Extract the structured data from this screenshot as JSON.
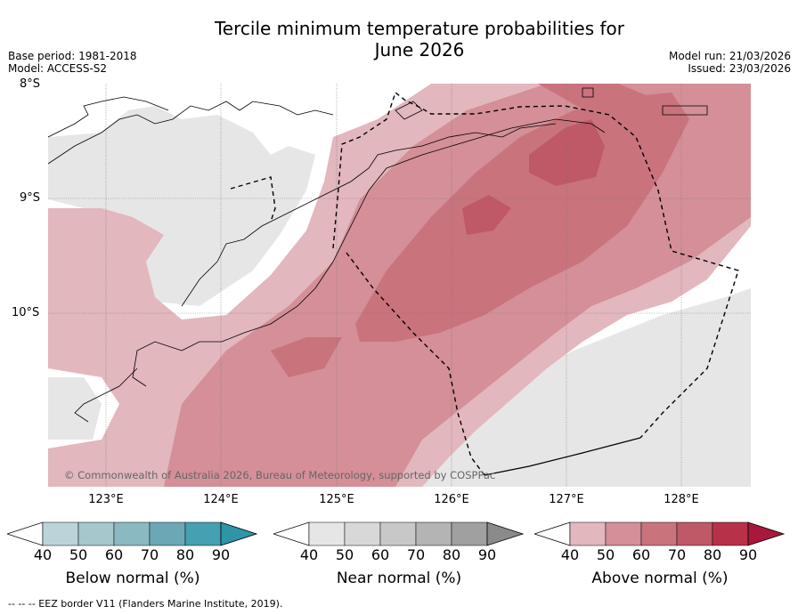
{
  "title_line1": "Tercile minimum temperature probabilities for",
  "title_line2": "June 2026",
  "meta": {
    "base_period": "Base period: 1981-2018",
    "model": "Model: ACCESS-S2",
    "model_run": "Model run: 21/03/2026",
    "issued": "Issued: 23/03/2026"
  },
  "lat_labels": [
    "8°S",
    "9°S",
    "10°S"
  ],
  "lon_labels": [
    "123°E",
    "124°E",
    "125°E",
    "126°E",
    "127°E",
    "128°E"
  ],
  "copyright": "© Commonwealth of Australia 2026, Bureau of Meteorology, supported by COSPPac",
  "colorbars": [
    {
      "label": "Below normal (%)",
      "ticks": [
        "40",
        "50",
        "60",
        "70",
        "80",
        "90"
      ],
      "colors": [
        "#bcd3da",
        "#a6c7cc",
        "#8bb9c2",
        "#6aa8b5",
        "#45a0b1",
        "#2e94a8"
      ]
    },
    {
      "label": "Near normal (%)",
      "ticks": [
        "40",
        "50",
        "60",
        "70",
        "80",
        "90"
      ],
      "colors": [
        "#e6e6e6",
        "#d8d8d8",
        "#c8c8c8",
        "#b4b4b4",
        "#a0a0a0",
        "#8a8a8a"
      ]
    },
    {
      "label": "Above normal (%)",
      "ticks": [
        "40",
        "50",
        "60",
        "70",
        "80",
        "90"
      ],
      "colors": [
        "#e2b7bd",
        "#d48f98",
        "#c9737d",
        "#bf5867",
        "#b73249",
        "#a8183a"
      ]
    }
  ],
  "footer": "--  --  -- EEZ border V11 (Flanders Marine Institute, 2019)."
}
